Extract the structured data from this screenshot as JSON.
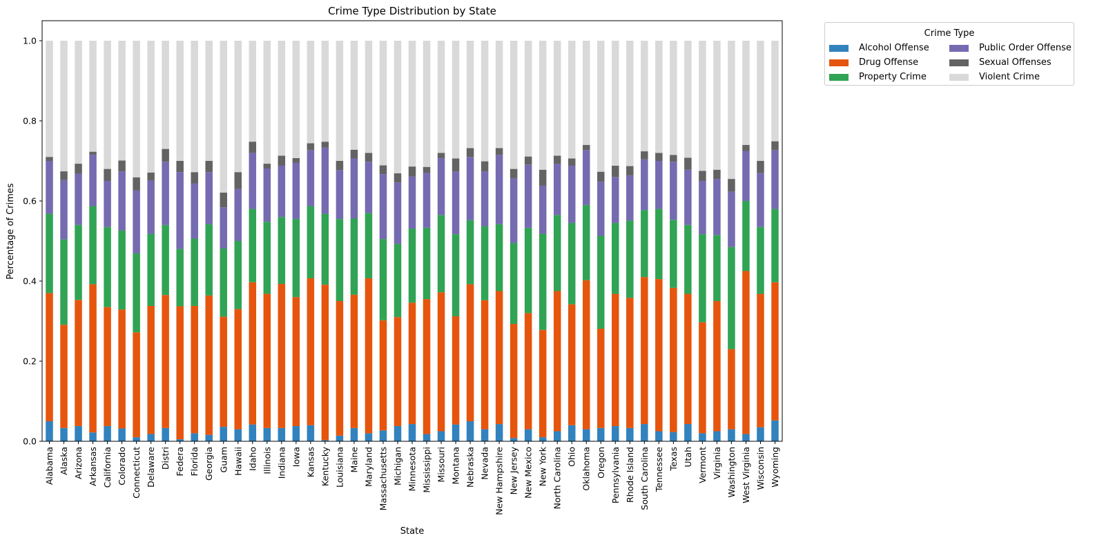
{
  "chart_data": {
    "type": "bar",
    "stacked": true,
    "title": "Crime Type Distribution by State",
    "xlabel": "State",
    "ylabel": "Percentage of Crimes",
    "ylim": [
      0,
      1.05
    ],
    "yticks": [
      "0.0",
      "0.2",
      "0.4",
      "0.6",
      "0.8",
      "1.0"
    ],
    "grid": false,
    "legend": {
      "title": "Crime Type",
      "placement": "outside top-right",
      "columns": 2
    },
    "categories": [
      "Alabama",
      "Alaska",
      "Arizona",
      "Arkansas",
      "California",
      "Colorado",
      "Connecticut",
      "Delaware",
      "Distri",
      "Federa",
      "Florida",
      "Georgia",
      "Guam",
      "Hawaii",
      "Idaho",
      "Illinois",
      "Indiana",
      "Iowa",
      "Kansas",
      "Kentucky",
      "Louisiana",
      "Maine",
      "Maryland",
      "Massachusetts",
      "Michigan",
      "Minnesota",
      "Mississippi",
      "Missouri",
      "Montana",
      "Nebraska",
      "Nevada",
      "New Hampshire",
      "New Jersey",
      "New Mexico",
      "New York",
      "North Carolina",
      "Ohio",
      "Oklahoma",
      "Oregon",
      "Pennsylvania",
      "Rhode Island",
      "South Carolina",
      "Tennessee",
      "Texas",
      "Utah",
      "Vermont",
      "Virginia",
      "Washington",
      "West Virginia",
      "Wisconsin",
      "Wyoming"
    ],
    "series": [
      {
        "name": "Alcohol Offense",
        "color": "#3182bd",
        "values": [
          0.05,
          0.033,
          0.038,
          0.022,
          0.038,
          0.032,
          0.01,
          0.018,
          0.033,
          0.005,
          0.02,
          0.016,
          0.036,
          0.03,
          0.042,
          0.033,
          0.033,
          0.038,
          0.04,
          0.003,
          0.014,
          0.033,
          0.02,
          0.027,
          0.038,
          0.043,
          0.018,
          0.025,
          0.042,
          0.05,
          0.03,
          0.043,
          0.008,
          0.03,
          0.01,
          0.025,
          0.04,
          0.03,
          0.033,
          0.038,
          0.033,
          0.043,
          0.025,
          0.023,
          0.043,
          0.02,
          0.025,
          0.03,
          0.018,
          0.035,
          0.052
        ]
      },
      {
        "name": "Drug Offense",
        "color": "#e6550d",
        "values": [
          0.32,
          0.258,
          0.315,
          0.37,
          0.297,
          0.297,
          0.262,
          0.32,
          0.332,
          0.332,
          0.318,
          0.348,
          0.275,
          0.3,
          0.355,
          0.335,
          0.36,
          0.322,
          0.367,
          0.388,
          0.336,
          0.333,
          0.387,
          0.275,
          0.272,
          0.303,
          0.337,
          0.347,
          0.27,
          0.342,
          0.322,
          0.332,
          0.285,
          0.29,
          0.268,
          0.35,
          0.302,
          0.372,
          0.248,
          0.33,
          0.325,
          0.367,
          0.38,
          0.36,
          0.325,
          0.277,
          0.325,
          0.2,
          0.407,
          0.333,
          0.345
        ]
      },
      {
        "name": "Property Crime",
        "color": "#31a354",
        "values": [
          0.198,
          0.213,
          0.187,
          0.195,
          0.2,
          0.197,
          0.197,
          0.18,
          0.175,
          0.143,
          0.168,
          0.178,
          0.17,
          0.17,
          0.183,
          0.18,
          0.167,
          0.195,
          0.18,
          0.177,
          0.205,
          0.19,
          0.163,
          0.203,
          0.183,
          0.185,
          0.178,
          0.193,
          0.205,
          0.16,
          0.185,
          0.167,
          0.202,
          0.213,
          0.24,
          0.19,
          0.203,
          0.188,
          0.232,
          0.177,
          0.193,
          0.167,
          0.175,
          0.17,
          0.172,
          0.22,
          0.165,
          0.255,
          0.175,
          0.167,
          0.183
        ]
      },
      {
        "name": "Public Order Offense",
        "color": "#756bb1",
        "values": [
          0.132,
          0.148,
          0.128,
          0.128,
          0.115,
          0.148,
          0.157,
          0.133,
          0.158,
          0.192,
          0.138,
          0.13,
          0.103,
          0.13,
          0.14,
          0.133,
          0.128,
          0.14,
          0.14,
          0.165,
          0.122,
          0.15,
          0.128,
          0.162,
          0.153,
          0.13,
          0.137,
          0.142,
          0.157,
          0.158,
          0.137,
          0.173,
          0.162,
          0.158,
          0.12,
          0.128,
          0.143,
          0.137,
          0.135,
          0.115,
          0.113,
          0.127,
          0.12,
          0.145,
          0.138,
          0.133,
          0.14,
          0.138,
          0.125,
          0.135,
          0.147
        ]
      },
      {
        "name": "Sexual Offenses",
        "color": "#636363",
        "values": [
          0.01,
          0.022,
          0.025,
          0.008,
          0.03,
          0.027,
          0.033,
          0.02,
          0.032,
          0.028,
          0.028,
          0.028,
          0.037,
          0.042,
          0.028,
          0.012,
          0.025,
          0.012,
          0.017,
          0.015,
          0.023,
          0.022,
          0.022,
          0.022,
          0.023,
          0.025,
          0.015,
          0.013,
          0.032,
          0.022,
          0.025,
          0.017,
          0.023,
          0.02,
          0.04,
          0.02,
          0.018,
          0.013,
          0.025,
          0.028,
          0.023,
          0.02,
          0.02,
          0.017,
          0.03,
          0.025,
          0.023,
          0.032,
          0.015,
          0.03,
          0.022
        ]
      },
      {
        "name": "Violent Crime",
        "color": "#d9d9d9",
        "values": [
          0.29,
          0.326,
          0.307,
          0.277,
          0.32,
          0.299,
          0.341,
          0.329,
          0.27,
          0.3,
          0.328,
          0.3,
          0.379,
          0.328,
          0.252,
          0.307,
          0.287,
          0.293,
          0.256,
          0.252,
          0.3,
          0.272,
          0.28,
          0.311,
          0.331,
          0.314,
          0.315,
          0.28,
          0.294,
          0.268,
          0.301,
          0.268,
          0.32,
          0.289,
          0.322,
          0.287,
          0.294,
          0.26,
          0.327,
          0.312,
          0.313,
          0.276,
          0.28,
          0.285,
          0.292,
          0.325,
          0.322,
          0.345,
          0.26,
          0.3,
          0.251
        ]
      }
    ]
  }
}
